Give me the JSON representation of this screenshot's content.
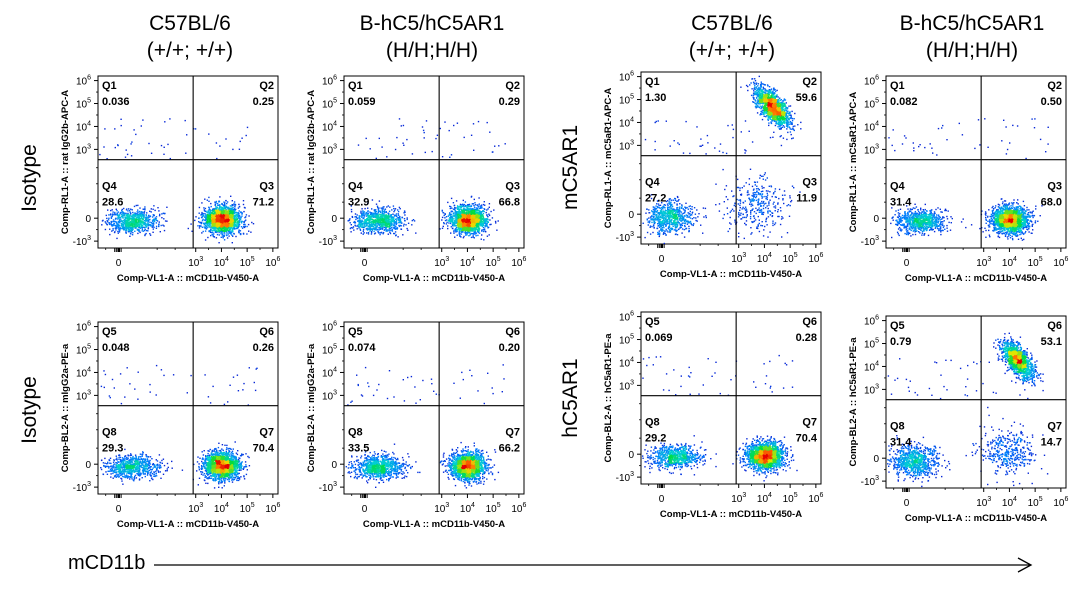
{
  "figure": {
    "columns": [
      {
        "line1": "C57BL/6",
        "line2": "(+/+; +/+)"
      },
      {
        "line1": "B-hC5/hC5AR1",
        "line2": "(H/H;H/H)"
      },
      {
        "line1": "C57BL/6",
        "line2": "(+/+; +/+)"
      },
      {
        "line1": "B-hC5/hC5AR1",
        "line2": "(H/H;H/H)"
      }
    ],
    "row_labels": [
      "Isotype",
      "Isotype",
      "mC5AR1",
      "hC5AR1"
    ],
    "x_axis_arrow_label": "mCD11b",
    "tick_labels": {
      "y": [
        {
          "base": "10",
          "exp": "6"
        },
        {
          "base": "10",
          "exp": "5"
        },
        {
          "base": "10",
          "exp": "4"
        },
        {
          "base": "10",
          "exp": "3"
        },
        {
          "base": "0",
          "exp": ""
        },
        {
          "base": "-10",
          "exp": "3"
        }
      ],
      "x": [
        {
          "base": "0",
          "exp": ""
        },
        {
          "base": "10",
          "exp": "3"
        },
        {
          "base": "10",
          "exp": "4"
        },
        {
          "base": "10",
          "exp": "5"
        },
        {
          "base": "10",
          "exp": "6"
        }
      ]
    }
  },
  "chart_data": [
    {
      "type": "scatter",
      "title": "C57BL/6 (+/+; +/+)",
      "row": "Isotype",
      "xlabel": "Comp-VL1-A :: mCD11b-V450-A",
      "ylabel": "Comp-RL1-A :: rat IgG2b-APC-A",
      "quadrants": [
        {
          "name": "Q1",
          "value": "0.036"
        },
        {
          "name": "Q2",
          "value": "0.25"
        },
        {
          "name": "Q4",
          "value": "28.6"
        },
        {
          "name": "Q3",
          "value": "71.2"
        }
      ],
      "populations": [
        {
          "x": 0.5,
          "y": -0.1,
          "spread_x": 0.5,
          "spread_y": 0.25,
          "weight": 0.29
        },
        {
          "x": 4.0,
          "y": -0.05,
          "spread_x": 0.35,
          "spread_y": 0.3,
          "weight": 0.71
        }
      ]
    },
    {
      "type": "scatter",
      "title": "B-hC5/hC5AR1 (H/H;H/H)",
      "row": "Isotype",
      "xlabel": "Comp-VL1-A :: mCD11b-V450-A",
      "ylabel": "Comp-RL1-A :: rat IgG2b-APC-A",
      "quadrants": [
        {
          "name": "Q1",
          "value": "0.059"
        },
        {
          "name": "Q2",
          "value": "0.29"
        },
        {
          "name": "Q4",
          "value": "32.9"
        },
        {
          "name": "Q3",
          "value": "66.8"
        }
      ],
      "populations": [
        {
          "x": 0.5,
          "y": -0.1,
          "spread_x": 0.5,
          "spread_y": 0.25,
          "weight": 0.33
        },
        {
          "x": 4.0,
          "y": -0.05,
          "spread_x": 0.35,
          "spread_y": 0.3,
          "weight": 0.67
        }
      ]
    },
    {
      "type": "scatter",
      "title": "C57BL/6 (+/+; +/+)",
      "row": "mC5AR1",
      "xlabel": "Comp-VL1-A :: mCD11b-V450-A",
      "ylabel": "Comp-RL1-A :: mC5aR1-APC-A",
      "quadrants": [
        {
          "name": "Q1",
          "value": "1.30"
        },
        {
          "name": "Q2",
          "value": "59.6"
        },
        {
          "name": "Q4",
          "value": "27.2"
        },
        {
          "name": "Q3",
          "value": "11.9"
        }
      ],
      "populations": [
        {
          "x": 0.3,
          "y": -0.1,
          "spread_x": 0.45,
          "spread_y": 0.35,
          "weight": 0.27
        },
        {
          "x": 3.7,
          "y": 0.4,
          "spread_x": 0.6,
          "spread_y": 0.6,
          "weight": 0.13
        },
        {
          "x": 4.3,
          "y": 4.7,
          "spread_x": 0.3,
          "spread_y": 0.3,
          "weight": 0.6
        }
      ]
    },
    {
      "type": "scatter",
      "title": "B-hC5/hC5AR1 (H/H;H/H)",
      "row": "mC5AR1",
      "xlabel": "Comp-VL1-A :: mCD11b-V450-A",
      "ylabel": "Comp-RL1-A :: mC5aR1-APC-A",
      "quadrants": [
        {
          "name": "Q1",
          "value": "0.082"
        },
        {
          "name": "Q2",
          "value": "0.50"
        },
        {
          "name": "Q4",
          "value": "31.4"
        },
        {
          "name": "Q3",
          "value": "68.0"
        }
      ],
      "populations": [
        {
          "x": 0.5,
          "y": -0.1,
          "spread_x": 0.5,
          "spread_y": 0.25,
          "weight": 0.31
        },
        {
          "x": 4.0,
          "y": -0.05,
          "spread_x": 0.35,
          "spread_y": 0.3,
          "weight": 0.69
        }
      ]
    },
    {
      "type": "scatter",
      "title": "C57BL/6 (+/+; +/+)",
      "row": "Isotype",
      "xlabel": "Comp-VL1-A :: mCD11b-V450-A",
      "ylabel": "Comp-BL2-A :: mIgG2a-PE-a",
      "quadrants": [
        {
          "name": "Q5",
          "value": "0.048"
        },
        {
          "name": "Q6",
          "value": "0.26"
        },
        {
          "name": "Q8",
          "value": "29.3"
        },
        {
          "name": "Q7",
          "value": "70.4"
        }
      ],
      "populations": [
        {
          "x": 0.5,
          "y": -0.1,
          "spread_x": 0.5,
          "spread_y": 0.25,
          "weight": 0.29
        },
        {
          "x": 4.0,
          "y": -0.05,
          "spread_x": 0.35,
          "spread_y": 0.3,
          "weight": 0.71
        }
      ]
    },
    {
      "type": "scatter",
      "title": "B-hC5/hC5AR1 (H/H;H/H)",
      "row": "Isotype",
      "xlabel": "Comp-VL1-A :: mCD11b-V450-A",
      "ylabel": "Comp-BL2-A :: mIgG2a-PE-a",
      "quadrants": [
        {
          "name": "Q5",
          "value": "0.074"
        },
        {
          "name": "Q6",
          "value": "0.20"
        },
        {
          "name": "Q8",
          "value": "33.5"
        },
        {
          "name": "Q7",
          "value": "66.2"
        }
      ],
      "populations": [
        {
          "x": 0.5,
          "y": -0.1,
          "spread_x": 0.5,
          "spread_y": 0.25,
          "weight": 0.34
        },
        {
          "x": 4.0,
          "y": -0.05,
          "spread_x": 0.35,
          "spread_y": 0.3,
          "weight": 0.66
        }
      ]
    },
    {
      "type": "scatter",
      "title": "C57BL/6 (+/+; +/+)",
      "row": "hC5AR1",
      "xlabel": "Comp-VL1-A :: mCD11b-V450-A",
      "ylabel": "Comp-BL2-A :: hC5aR1-PE-a",
      "quadrants": [
        {
          "name": "Q5",
          "value": "0.069"
        },
        {
          "name": "Q6",
          "value": "0.28"
        },
        {
          "name": "Q8",
          "value": "29.2"
        },
        {
          "name": "Q7",
          "value": "70.4"
        }
      ],
      "populations": [
        {
          "x": 0.5,
          "y": -0.1,
          "spread_x": 0.5,
          "spread_y": 0.25,
          "weight": 0.29
        },
        {
          "x": 4.0,
          "y": -0.05,
          "spread_x": 0.35,
          "spread_y": 0.3,
          "weight": 0.71
        }
      ]
    },
    {
      "type": "scatter",
      "title": "B-hC5/hC5AR1 (H/H;H/H)",
      "row": "hC5AR1",
      "xlabel": "Comp-VL1-A :: mCD11b-V450-A",
      "ylabel": "Comp-BL2-A :: hC5aR1-PE-a",
      "quadrants": [
        {
          "name": "Q5",
          "value": "0.79"
        },
        {
          "name": "Q6",
          "value": "53.1"
        },
        {
          "name": "Q8",
          "value": "31.4"
        },
        {
          "name": "Q7",
          "value": "14.7"
        }
      ],
      "populations": [
        {
          "x": 0.3,
          "y": -0.1,
          "spread_x": 0.45,
          "spread_y": 0.35,
          "weight": 0.31
        },
        {
          "x": 3.9,
          "y": 0.3,
          "spread_x": 0.55,
          "spread_y": 0.5,
          "weight": 0.15
        },
        {
          "x": 4.3,
          "y": 4.3,
          "spread_x": 0.3,
          "spread_y": 0.3,
          "weight": 0.54
        }
      ]
    }
  ]
}
